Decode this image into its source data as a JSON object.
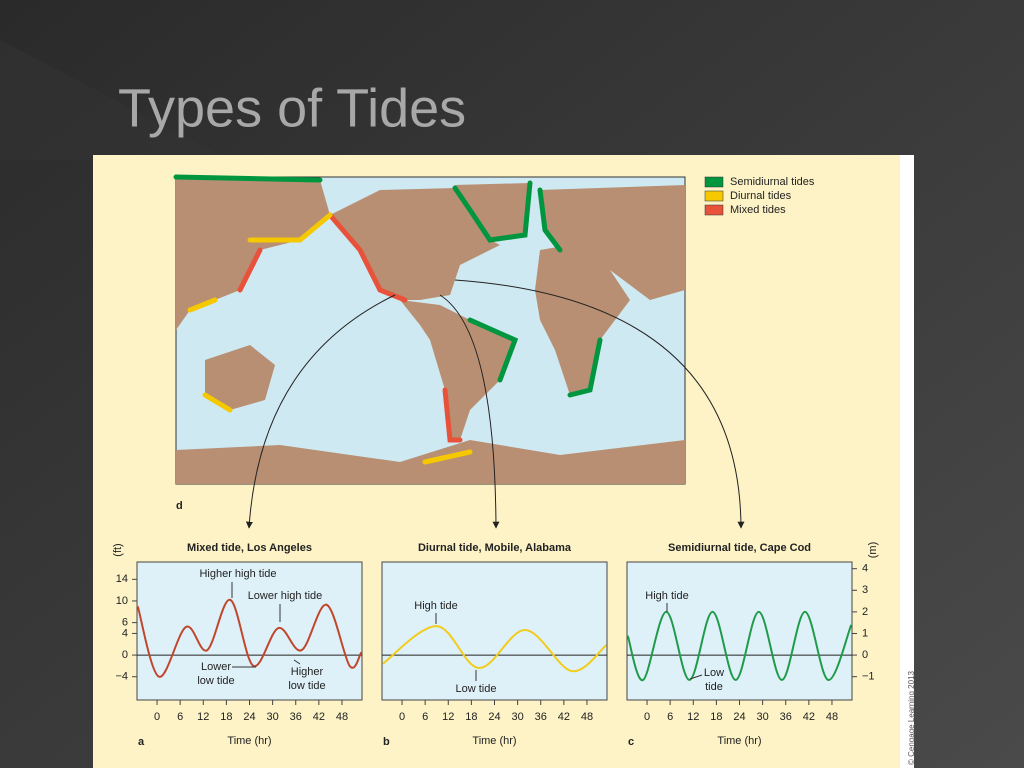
{
  "slide_title": "Types of Tides",
  "credit": "© Cengage Learning 2013",
  "map": {
    "label": "d",
    "legend": [
      {
        "name": "Semidiurnal tides",
        "color": "#00963f"
      },
      {
        "name": "Diurnal tides",
        "color": "#f5c800"
      },
      {
        "name": "Mixed tides",
        "color": "#e8523a"
      }
    ]
  },
  "chart_data": [
    {
      "type": "line",
      "panel": "a",
      "title": "Mixed tide, Los Angeles",
      "x_label": "Time (hr)",
      "y_label": "(ft)",
      "color": "#c0472e",
      "x": [
        -5,
        0.5,
        7.5,
        13,
        19,
        25,
        31.5,
        37.5,
        44,
        50,
        53
      ],
      "values": [
        9,
        -4,
        5.2,
        0.9,
        10.2,
        -2,
        5,
        0.9,
        9.3,
        -2,
        0.5
      ],
      "xlim": [
        -5.2,
        53.2
      ],
      "xticks": [
        0,
        6,
        12,
        18,
        24,
        30,
        36,
        42,
        48
      ],
      "ylim": [
        -8.3,
        17.2
      ],
      "yticks": [
        14,
        10,
        6,
        4,
        0,
        {
          "value": -4,
          "label": "−4"
        }
      ],
      "annotations": [
        {
          "lines": [
            "Higher high tide"
          ]
        },
        {
          "lines": [
            "Lower high tide"
          ]
        },
        {
          "lines": [
            "Lower",
            "low tide"
          ]
        },
        {
          "lines": [
            "Higher",
            "low tide"
          ]
        }
      ]
    },
    {
      "type": "line",
      "panel": "b",
      "title": "Diurnal tide, Mobile, Alabama",
      "x_label": "Time (hr)",
      "color": "#f2cc1a",
      "x": [
        -5,
        9,
        20,
        32,
        44,
        53
      ],
      "values": [
        -0.4,
        1.34,
        -0.6,
        1.16,
        -0.74,
        0.46
      ],
      "xlim": [
        -5.2,
        53.2
      ],
      "xticks": [
        0,
        6,
        12,
        18,
        24,
        30,
        36,
        42,
        48
      ],
      "ylim": [
        -2.08,
        4.31
      ],
      "annotations": [
        {
          "lines": [
            "High tide"
          ]
        },
        {
          "lines": [
            "Low tide"
          ]
        }
      ]
    },
    {
      "type": "line",
      "panel": "c",
      "title": "Semidiurnal tide, Cape Cod",
      "x_label": "Time (hr)",
      "y_label": "(m)",
      "color": "#1f9b4a",
      "x": [
        -5,
        -1,
        5,
        11,
        17,
        23,
        29,
        35,
        41,
        47,
        53
      ],
      "values": [
        0.9,
        -1.15,
        2,
        -1.15,
        2,
        -1.15,
        2,
        -1.15,
        2,
        -1.15,
        1.4
      ],
      "xlim": [
        -5.2,
        53.2
      ],
      "xticks": [
        0,
        6,
        12,
        18,
        24,
        30,
        36,
        42,
        48
      ],
      "ylim": [
        -2.08,
        4.31
      ],
      "yticks": [
        4,
        3,
        2,
        1,
        0,
        {
          "value": -1,
          "label": "−1"
        }
      ],
      "annotations": [
        {
          "lines": [
            "High tide"
          ]
        },
        {
          "lines": [
            "Low",
            "tide"
          ]
        }
      ]
    }
  ]
}
